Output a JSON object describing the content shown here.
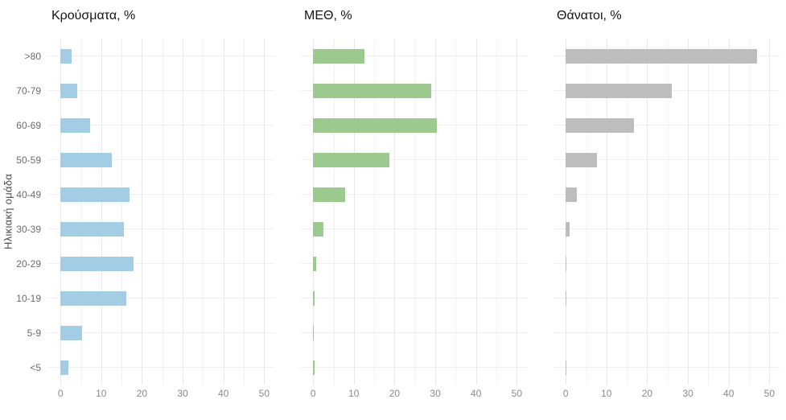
{
  "ylabel": "Ηλικιακή ομάδα",
  "chart_data": {
    "type": "bar",
    "orientation": "horizontal",
    "title": "",
    "ylabel": "Ηλικιακή ομάδα",
    "xlabel": "",
    "categories": [
      ">80",
      "70-79",
      "60-69",
      "50-59",
      "40-49",
      "30-39",
      "20-29",
      "10-19",
      "5-9",
      "<5"
    ],
    "x_ticks": [
      0,
      10,
      20,
      30,
      40,
      50
    ],
    "minor_grid_step": 5,
    "xlim": [
      0,
      50
    ],
    "grid": "on",
    "legend": "none",
    "series": [
      {
        "name": "Κρούσματα, %",
        "color": "#a3cde5",
        "values": [
          2.8,
          4.1,
          7.3,
          12.7,
          16.9,
          15.6,
          18.0,
          16.1,
          5.2,
          1.9
        ]
      },
      {
        "name": "ΜΕΘ, %",
        "color": "#9cca8e",
        "values": [
          12.7,
          28.9,
          30.4,
          18.7,
          7.9,
          2.5,
          0.8,
          0.3,
          0.1,
          0.3
        ]
      },
      {
        "name": "Θάνατοι, %",
        "color": "#bdbdbd",
        "values": [
          47.0,
          26.1,
          16.8,
          7.7,
          2.8,
          0.9,
          0.2,
          0.2,
          0.0,
          0.1
        ]
      }
    ]
  },
  "panel_titles": {
    "cases": "Κρούσματα, %",
    "icu": "ΜΕΘ, %",
    "deaths": "Θάνατοι, %"
  }
}
